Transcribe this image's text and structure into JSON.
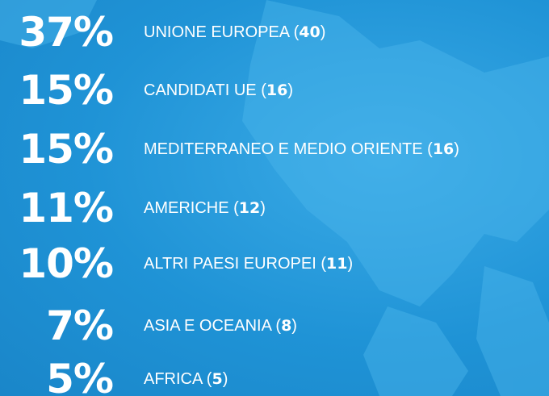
{
  "items": [
    {
      "percent": "37%",
      "label": "UNIONE EUROPEA (",
      "count": "40",
      "close": ")"
    },
    {
      "percent": "15%",
      "label": "CANDIDATI UE (",
      "count": "16",
      "close": ")"
    },
    {
      "percent": "15%",
      "label": "MEDITERRANEO E MEDIO ORIENTE (",
      "count": "16",
      "close": ")"
    },
    {
      "percent": "11%",
      "label": "AMERICHE (",
      "count": "12",
      "close": ")"
    },
    {
      "percent": "10%",
      "label": "ALTRI PAESI EUROPEI (",
      "count": "11",
      "close": ")"
    },
    {
      "percent": "7%",
      "label": "ASIA E OCEANIA (",
      "count": "8",
      "close": ")"
    },
    {
      "percent": "5%",
      "label": "AFRICA (",
      "count": "5",
      "close": ")"
    }
  ]
}
